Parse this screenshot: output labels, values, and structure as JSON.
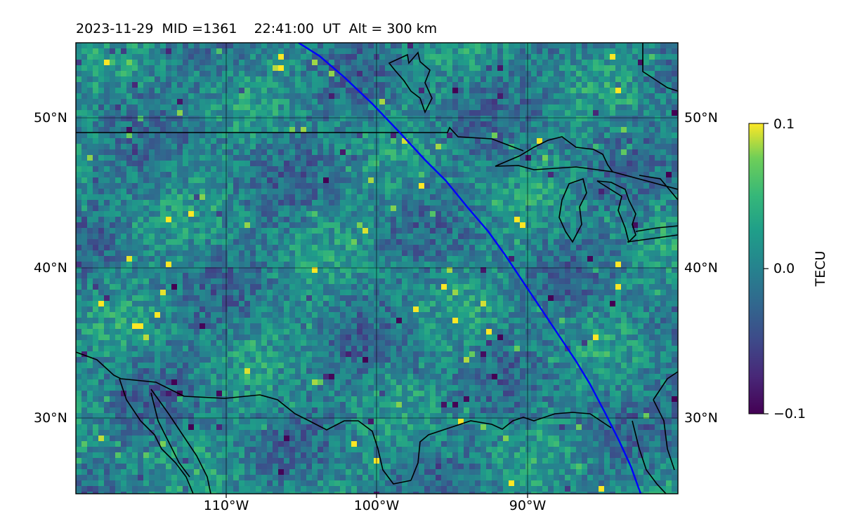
{
  "title": "2023-11-29  MID =1361    22:41:00  UT  Alt = 300 km",
  "map": {
    "lat_labels": [
      {
        "text": "50°N",
        "lat": 50
      },
      {
        "text": "40°N",
        "lat": 40
      },
      {
        "text": "30°N",
        "lat": 30
      }
    ],
    "lon_labels": [
      {
        "text": "110°W",
        "lon": -110
      },
      {
        "text": "100°W",
        "lon": -100
      },
      {
        "text": "90°W",
        "lon": -90
      }
    ],
    "extent": {
      "lon_min": -120,
      "lon_max": -80,
      "lat_min": 25,
      "lat_max": 55
    },
    "grid": "on",
    "colormap": "viridis",
    "track_color": "#0000ff",
    "coast_color": "#000000"
  },
  "colorbar": {
    "label": "TECU",
    "ticks": [
      {
        "text": "0.1",
        "value": 0.1
      },
      {
        "text": "0.0",
        "value": 0.0
      },
      {
        "text": "−0.1",
        "value": -0.1
      }
    ],
    "range": [
      -0.1,
      0.1
    ]
  }
}
